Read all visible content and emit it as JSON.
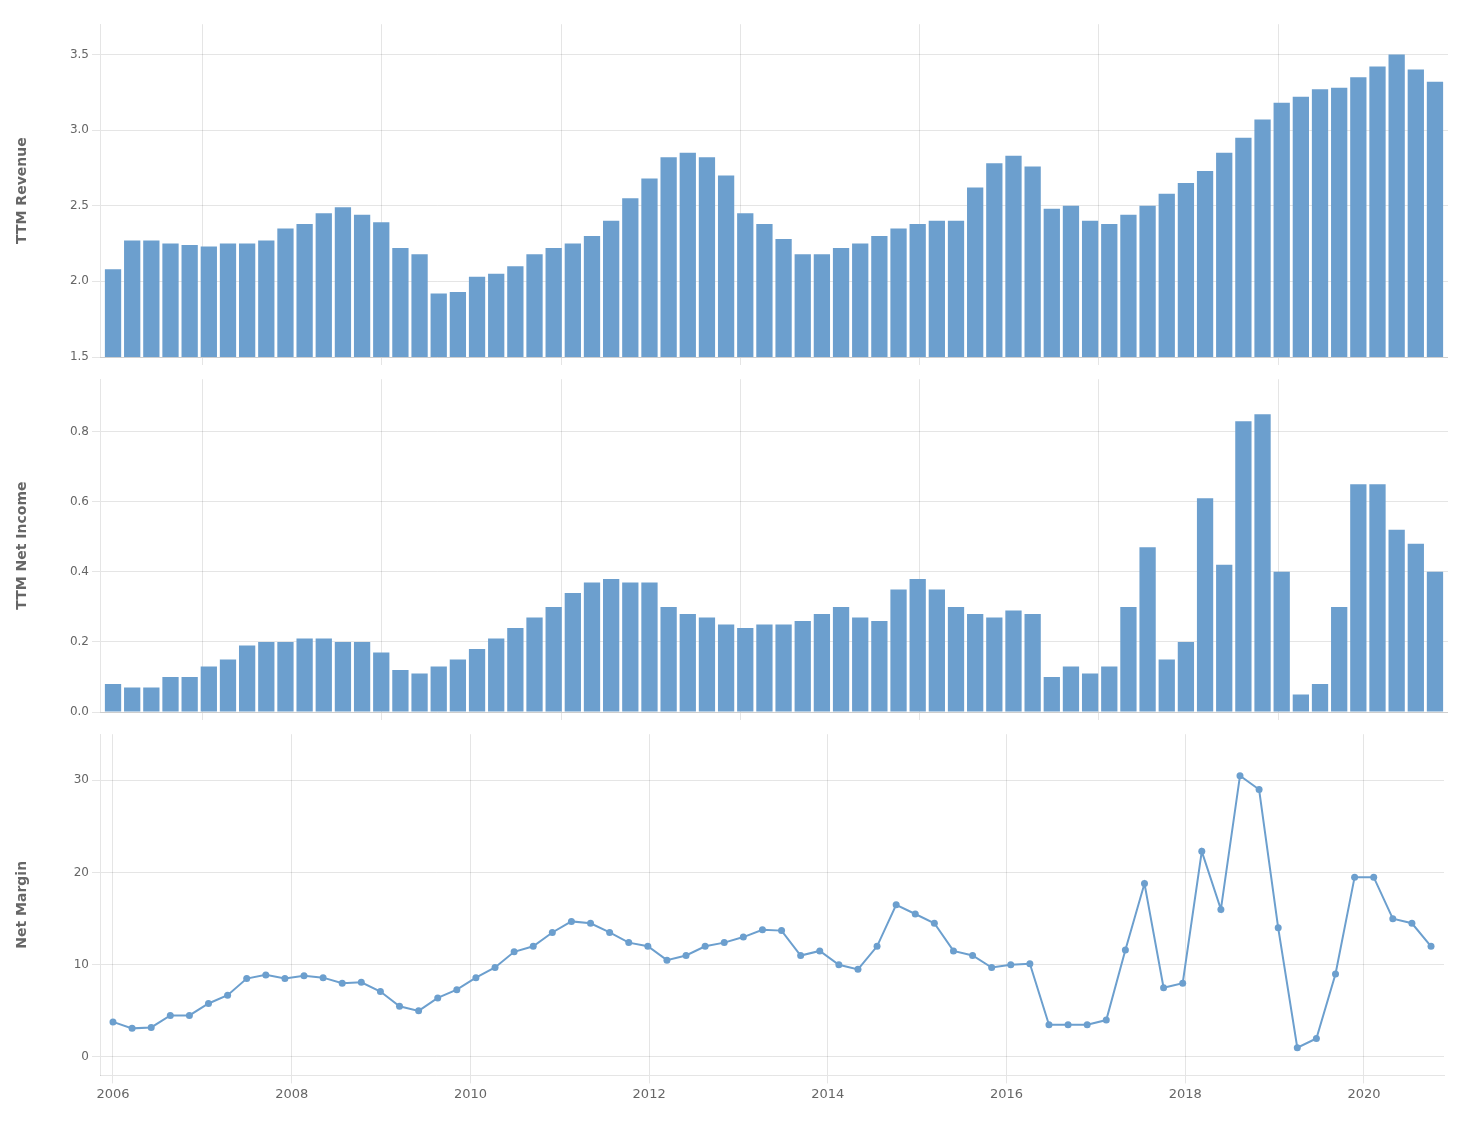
{
  "chart_data": [
    {
      "type": "bar",
      "ylabel": "TTM Revenue",
      "color": "#6c9fce",
      "grid": true,
      "tick_labels": "y",
      "x": [
        2006,
        2006.213768,
        2006.427536,
        2006.641304,
        2006.855072,
        2007.068841,
        2007.282609,
        2007.496377,
        2007.710145,
        2007.923913,
        2008.137681,
        2008.351449,
        2008.565217,
        2008.778986,
        2008.992754,
        2009.206522,
        2009.42029,
        2009.634058,
        2009.847826,
        2010.061594,
        2010.275362,
        2010.48913,
        2010.702899,
        2010.916667,
        2011.130435,
        2011.344203,
        2011.557971,
        2011.771739,
        2011.985507,
        2012.199275,
        2012.413043,
        2012.626812,
        2012.84058,
        2013.054348,
        2013.268116,
        2013.481884,
        2013.695652,
        2013.90942,
        2014.123188,
        2014.336957,
        2014.550725,
        2014.764493,
        2014.978261,
        2015.192029,
        2015.405797,
        2015.619565,
        2015.833333,
        2016.047101,
        2016.26087,
        2016.474638,
        2016.688406,
        2016.902174,
        2017.115942,
        2017.32971,
        2017.543478,
        2017.757246,
        2017.971014,
        2018.184783,
        2018.398551,
        2018.612319,
        2018.826087,
        2019.039855,
        2019.253623,
        2019.467391,
        2019.681159,
        2019.894928,
        2020.108696,
        2020.322464,
        2020.536232,
        2020.75
      ],
      "values": [
        2.08,
        2.27,
        2.27,
        2.25,
        2.24,
        2.23,
        2.25,
        2.25,
        2.27,
        2.35,
        2.38,
        2.45,
        2.49,
        2.44,
        2.39,
        2.22,
        2.18,
        1.92,
        1.93,
        2.03,
        2.05,
        2.1,
        2.18,
        2.22,
        2.25,
        2.3,
        2.4,
        2.55,
        2.68,
        2.82,
        2.85,
        2.82,
        2.7,
        2.45,
        2.38,
        2.28,
        2.18,
        2.18,
        2.22,
        2.25,
        2.3,
        2.35,
        2.38,
        2.4,
        2.4,
        2.62,
        2.78,
        2.83,
        2.76,
        2.48,
        2.5,
        2.4,
        2.38,
        2.44,
        2.5,
        2.58,
        2.65,
        2.73,
        2.85,
        2.95,
        3.07,
        3.18,
        3.22,
        3.27,
        3.28,
        3.35,
        3.42,
        3.5,
        3.4,
        3.32
      ],
      "xlim": [
        2005.854638,
        2020.895362
      ],
      "xticks": [
        2006,
        2008,
        2010,
        2012,
        2014,
        2016,
        2018,
        2020
      ],
      "ylim": [
        1.5,
        3.7
      ],
      "yticks": [
        1.5,
        {
          "value": 2.0,
          "label": "2.0"
        },
        2.5,
        {
          "value": 3.0,
          "label": "3.0"
        },
        3.5
      ]
    },
    {
      "type": "bar",
      "ylabel": "TTM Net Income",
      "color": "#6c9fce",
      "grid": true,
      "tick_labels": "y",
      "x": [
        2006,
        2006.213768,
        2006.427536,
        2006.641304,
        2006.855072,
        2007.068841,
        2007.282609,
        2007.496377,
        2007.710145,
        2007.923913,
        2008.137681,
        2008.351449,
        2008.565217,
        2008.778986,
        2008.992754,
        2009.206522,
        2009.42029,
        2009.634058,
        2009.847826,
        2010.061594,
        2010.275362,
        2010.48913,
        2010.702899,
        2010.916667,
        2011.130435,
        2011.344203,
        2011.557971,
        2011.771739,
        2011.985507,
        2012.199275,
        2012.413043,
        2012.626812,
        2012.84058,
        2013.054348,
        2013.268116,
        2013.481884,
        2013.695652,
        2013.90942,
        2014.123188,
        2014.336957,
        2014.550725,
        2014.764493,
        2014.978261,
        2015.192029,
        2015.405797,
        2015.619565,
        2015.833333,
        2016.047101,
        2016.26087,
        2016.474638,
        2016.688406,
        2016.902174,
        2017.115942,
        2017.32971,
        2017.543478,
        2017.757246,
        2017.971014,
        2018.184783,
        2018.398551,
        2018.612319,
        2018.826087,
        2019.039855,
        2019.253623,
        2019.467391,
        2019.681159,
        2019.894928,
        2020.108696,
        2020.322464,
        2020.536232,
        2020.75
      ],
      "values": [
        0.08,
        0.07,
        0.07,
        0.1,
        0.1,
        0.13,
        0.15,
        0.19,
        0.2,
        0.2,
        0.21,
        0.21,
        0.2,
        0.2,
        0.17,
        0.12,
        0.11,
        0.13,
        0.15,
        0.18,
        0.21,
        0.24,
        0.27,
        0.3,
        0.34,
        0.37,
        0.38,
        0.37,
        0.37,
        0.3,
        0.28,
        0.27,
        0.25,
        0.24,
        0.25,
        0.25,
        0.26,
        0.28,
        0.3,
        0.27,
        0.26,
        0.35,
        0.38,
        0.35,
        0.3,
        0.28,
        0.27,
        0.29,
        0.28,
        0.1,
        0.13,
        0.11,
        0.13,
        0.3,
        0.47,
        0.15,
        0.2,
        0.61,
        0.42,
        0.83,
        0.85,
        0.4,
        0.05,
        0.08,
        0.3,
        0.65,
        0.65,
        0.52,
        0.48,
        0.4
      ],
      "xlim": [
        2005.854638,
        2020.895362
      ],
      "xticks": [
        2006,
        2008,
        2010,
        2012,
        2014,
        2016,
        2018,
        2020
      ],
      "ylim": [
        0.0,
        0.95
      ],
      "yticks": [
        {
          "value": 0.0,
          "label": "0.0"
        },
        0.2,
        0.4,
        0.6,
        0.8
      ]
    },
    {
      "type": "line",
      "ylabel": "Net Margin",
      "color": "#6c9fce",
      "grid": true,
      "marker": "circle",
      "line_style": "solid",
      "x": [
        2006,
        2006.213768,
        2006.427536,
        2006.641304,
        2006.855072,
        2007.068841,
        2007.282609,
        2007.496377,
        2007.710145,
        2007.923913,
        2008.137681,
        2008.351449,
        2008.565217,
        2008.778986,
        2008.992754,
        2009.206522,
        2009.42029,
        2009.634058,
        2009.847826,
        2010.061594,
        2010.275362,
        2010.48913,
        2010.702899,
        2010.916667,
        2011.130435,
        2011.344203,
        2011.557971,
        2011.771739,
        2011.985507,
        2012.199275,
        2012.413043,
        2012.626812,
        2012.84058,
        2013.054348,
        2013.268116,
        2013.481884,
        2013.695652,
        2013.90942,
        2014.123188,
        2014.336957,
        2014.550725,
        2014.764493,
        2014.978261,
        2015.192029,
        2015.405797,
        2015.619565,
        2015.833333,
        2016.047101,
        2016.26087,
        2016.474638,
        2016.688406,
        2016.902174,
        2017.115942,
        2017.32971,
        2017.543478,
        2017.757246,
        2017.971014,
        2018.184783,
        2018.398551,
        2018.612319,
        2018.826087,
        2019.039855,
        2019.253623,
        2019.467391,
        2019.681159,
        2019.894928,
        2020.108696,
        2020.322464,
        2020.536232,
        2020.75
      ],
      "values": [
        3.8,
        3.1,
        3.2,
        4.5,
        4.5,
        5.8,
        6.7,
        8.5,
        8.9,
        8.5,
        8.8,
        8.6,
        8.0,
        8.1,
        7.1,
        5.5,
        5.0,
        6.4,
        7.3,
        8.6,
        9.7,
        11.4,
        12.0,
        13.5,
        14.7,
        14.5,
        13.5,
        12.4,
        12.0,
        10.5,
        11.0,
        12.0,
        12.4,
        13.0,
        13.8,
        13.7,
        11.0,
        11.5,
        10.0,
        9.5,
        12.0,
        16.5,
        15.5,
        14.5,
        11.5,
        11.0,
        9.7,
        10.0,
        10.1,
        3.5,
        3.5,
        3.5,
        4.0,
        11.6,
        18.8,
        7.5,
        8.0,
        22.3,
        16.0,
        30.5,
        29.0,
        14.0,
        1.0,
        2.0,
        9.0,
        19.5,
        19.5,
        15.0,
        14.5,
        12.0
      ],
      "xlim": [
        2005.854638,
        2020.895362
      ],
      "xticks": [
        2006,
        2008,
        2010,
        2012,
        2014,
        2016,
        2018,
        2020
      ],
      "ylim": [
        -2,
        35
      ],
      "yticks": [
        0,
        10,
        20,
        30
      ]
    }
  ]
}
